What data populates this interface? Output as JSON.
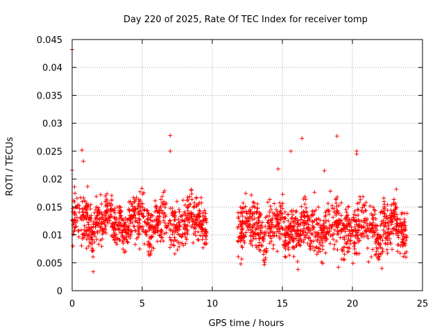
{
  "chart_data": {
    "type": "scatter",
    "title": "Day 220 of 2025, Rate Of TEC Index for receiver tomp",
    "xlabel": "GPS time / hours",
    "ylabel": "ROTI / TECUs",
    "xlim": [
      0,
      25
    ],
    "ylim": [
      0,
      0.045
    ],
    "xticks": [
      0,
      5,
      10,
      15,
      20,
      25
    ],
    "xtick_labels": [
      "0",
      "5",
      "10",
      "15",
      "20",
      "25"
    ],
    "yticks": [
      0,
      0.005,
      0.01,
      0.015,
      0.02,
      0.025,
      0.03,
      0.035,
      0.04,
      0.045
    ],
    "ytick_labels": [
      "0",
      "0.005",
      "0.01",
      "0.015",
      "0.02",
      "0.025",
      "0.03",
      "0.035",
      "0.04",
      "0.045"
    ],
    "grid": true,
    "marker": "+",
    "color": "#ff0000",
    "segments": [
      {
        "x_range": [
          0,
          9.6
        ],
        "center": 0.0125,
        "spread": 0.0028
      },
      {
        "x_range": [
          11.8,
          23.9
        ],
        "center": 0.0112,
        "spread": 0.003
      }
    ],
    "notable_points": [
      {
        "x": 0.0,
        "y": 0.0432
      },
      {
        "x": 0.0,
        "y": 0.0216
      },
      {
        "x": 0.05,
        "y": 0.0125
      },
      {
        "x": 0.05,
        "y": 0.008
      },
      {
        "x": 0.7,
        "y": 0.0252
      },
      {
        "x": 0.8,
        "y": 0.0232
      },
      {
        "x": 1.5,
        "y": 0.0034
      },
      {
        "x": 7.0,
        "y": 0.0278
      },
      {
        "x": 7.0,
        "y": 0.025
      },
      {
        "x": 15.6,
        "y": 0.025
      },
      {
        "x": 16.4,
        "y": 0.0273
      },
      {
        "x": 18.9,
        "y": 0.0277
      },
      {
        "x": 20.3,
        "y": 0.025
      },
      {
        "x": 20.3,
        "y": 0.0245
      },
      {
        "x": 18.0,
        "y": 0.0215
      },
      {
        "x": 14.7,
        "y": 0.0218
      },
      {
        "x": 19.0,
        "y": 0.0042
      },
      {
        "x": 22.1,
        "y": 0.004
      }
    ]
  }
}
